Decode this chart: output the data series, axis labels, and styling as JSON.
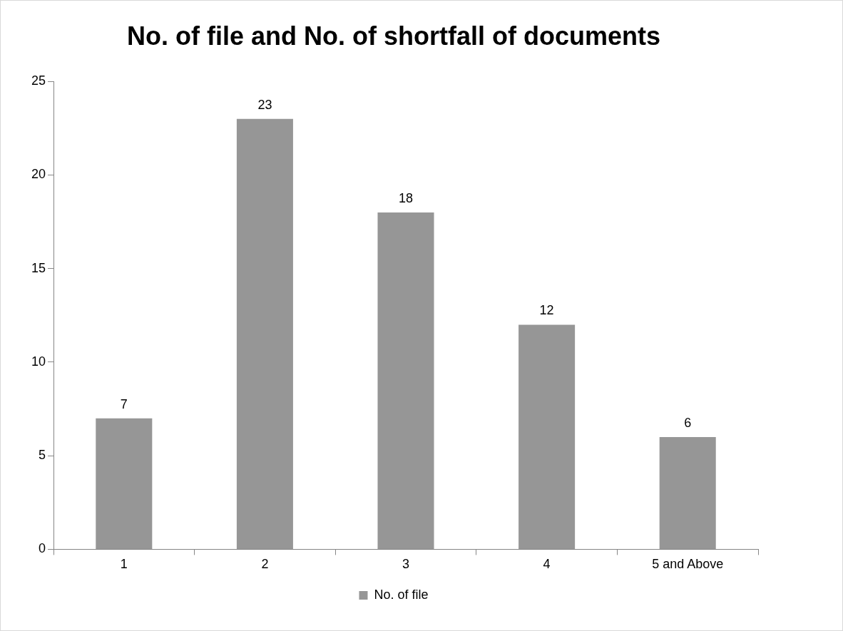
{
  "chart_data": {
    "type": "bar",
    "title": "No. of file and No. of shortfall of documents",
    "categories": [
      "1",
      "2",
      "3",
      "4",
      "5 and Above"
    ],
    "series": [
      {
        "name": "No. of file",
        "color": "#969696",
        "values": [
          7,
          23,
          18,
          12,
          6
        ]
      }
    ],
    "ylim": [
      0,
      25
    ],
    "yticks": [
      0,
      5,
      10,
      15,
      20,
      25
    ],
    "grid": false,
    "legend": "bottom",
    "data_labels": true
  }
}
